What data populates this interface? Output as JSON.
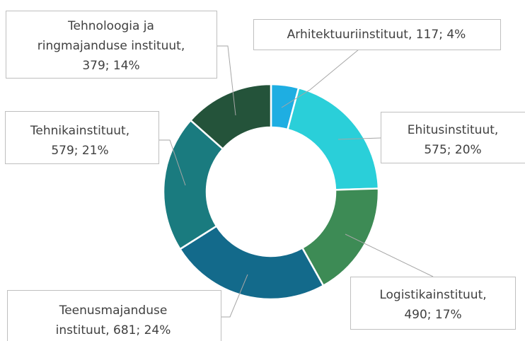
{
  "chart_data": {
    "type": "donut",
    "values": [
      117,
      575,
      490,
      681,
      579,
      379
    ],
    "value_labels": [
      [
        "Arhitektuuriinstituut, 117; 4%"
      ],
      [
        "Ehitusinstituut,",
        "575; 20%"
      ],
      [
        "Logistikainstituut,",
        "490; 17%"
      ],
      [
        "Teenusmajanduse",
        "instituut, 681; 24%"
      ],
      [
        "Tehnikainstituut,",
        "579; 21%"
      ],
      [
        "Tehnoloogia ja",
        "ringmajanduse instituut,",
        "379; 14%"
      ]
    ],
    "colors": [
      "#1eaee2",
      "#2acfd9",
      "#3d8b55",
      "#136a8b",
      "#1a7b7f",
      "#24533a"
    ]
  }
}
